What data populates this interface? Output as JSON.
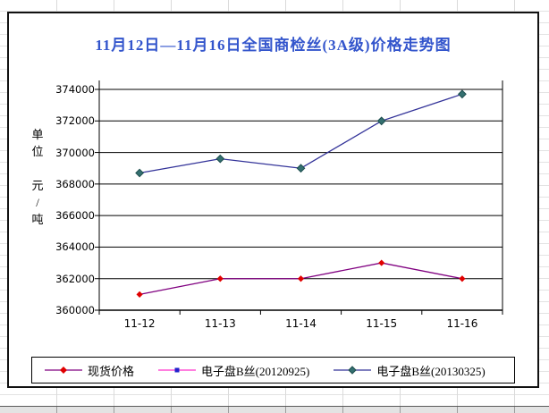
{
  "chart_data": {
    "type": "line",
    "title": "11月12日—11月16日全国商检丝(3A级)价格走势图",
    "title_color": "#3355CC",
    "categories": [
      "11-12",
      "11-13",
      "11-14",
      "11-15",
      "11-16"
    ],
    "series": [
      {
        "name": "现货价格",
        "values": [
          361000,
          362000,
          362000,
          363000,
          362000
        ],
        "line_color": "#800080",
        "marker": "diamond",
        "marker_color": "#E00000"
      },
      {
        "name": "电子盘B丝(20120925)",
        "values": [
          null,
          null,
          null,
          null,
          null
        ],
        "line_color": "#FF33CC",
        "marker": "square",
        "marker_color": "#2222CC"
      },
      {
        "name": "电子盘B丝(20130325)",
        "values": [
          368700,
          369600,
          369000,
          372000,
          373700
        ],
        "line_color": "#333399",
        "marker": "diamond",
        "marker_color": "#347070"
      }
    ],
    "xlabel": "",
    "ylabel": "单位 元/吨",
    "ylabel_vertical": "单\n位\n\n元\n/\n吨",
    "ylim": [
      360000,
      374000
    ],
    "ytick_step": 2000,
    "y_tick_labels": [
      "374000",
      "372000",
      "370000",
      "368000",
      "366000",
      "364000",
      "362000",
      "360000"
    ],
    "grid": true,
    "grid_color": "#000000",
    "legend_position": "bottom"
  }
}
